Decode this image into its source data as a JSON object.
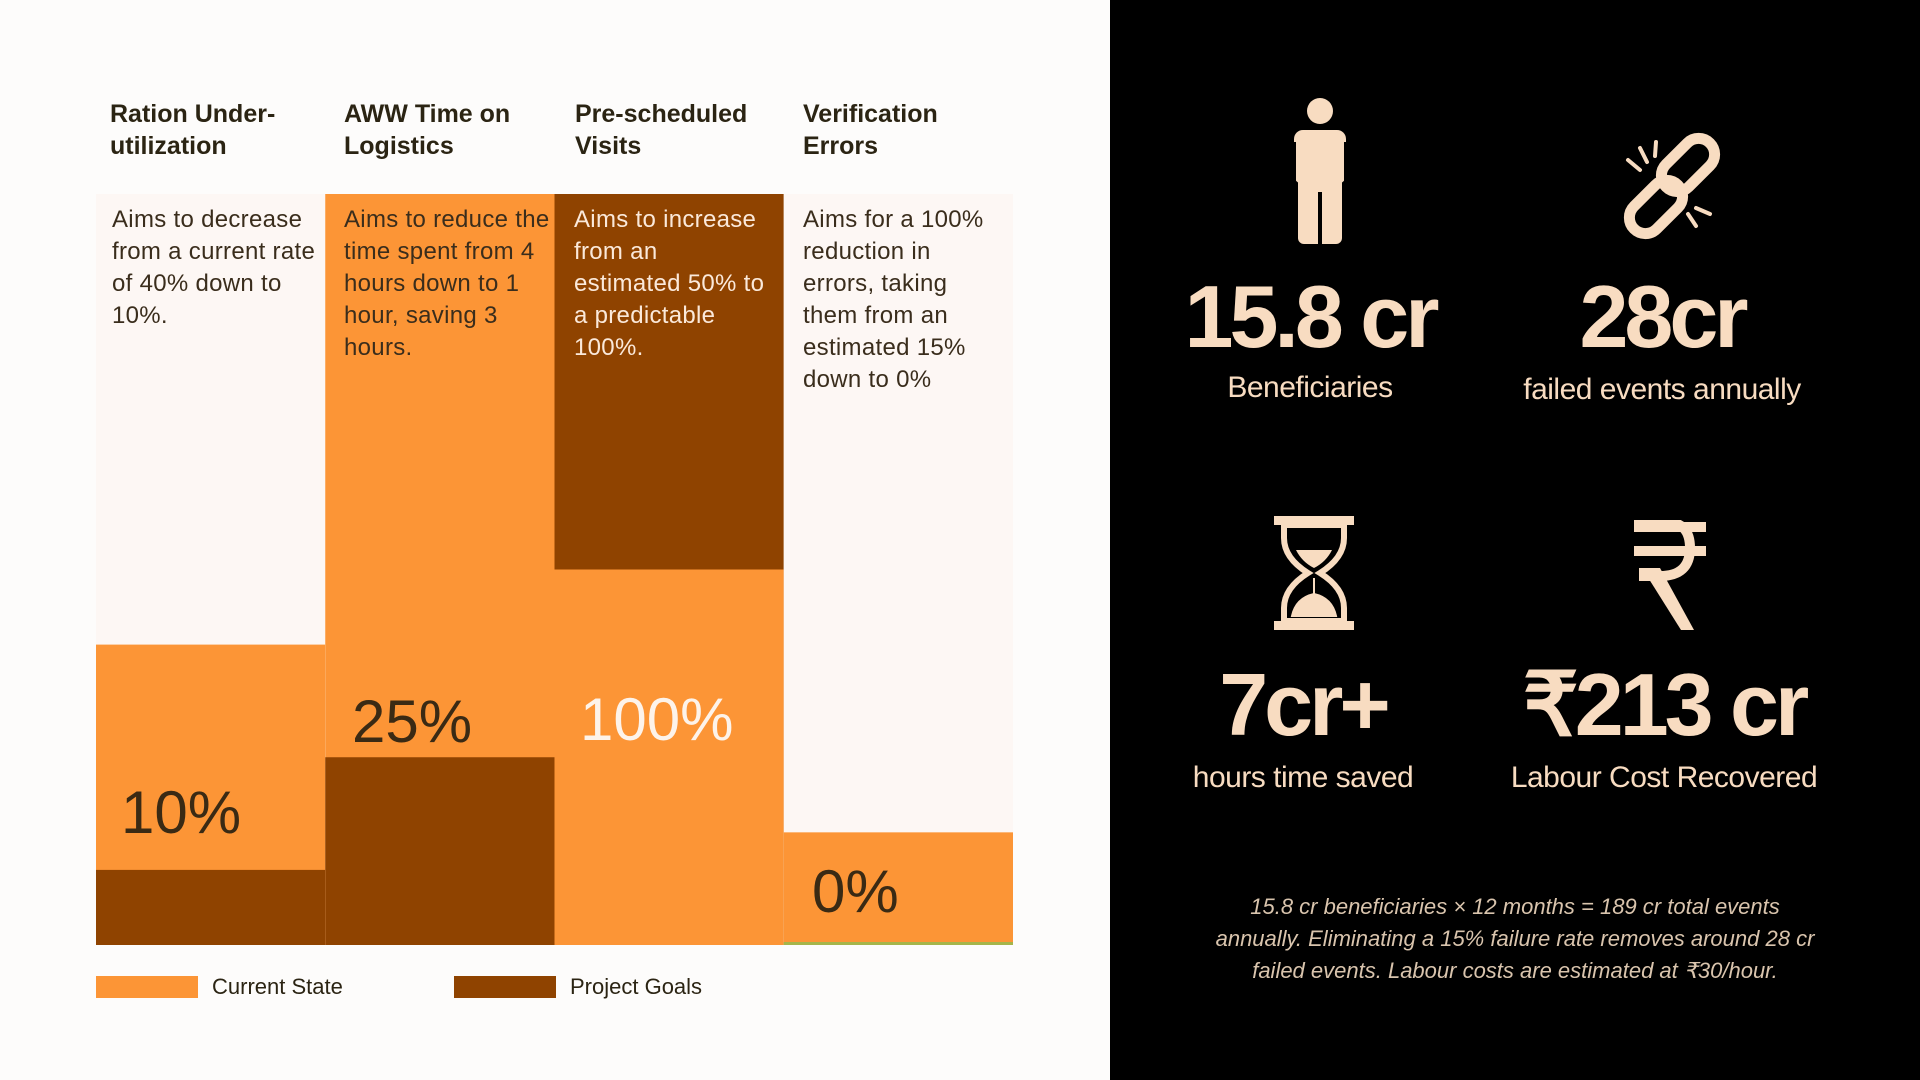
{
  "chart_data": {
    "type": "bar",
    "categories": [
      "Ration Under-utilization",
      "AWW Time on Logistics",
      "Pre-scheduled Visits",
      "Verification Errors"
    ],
    "series": [
      {
        "name": "Current State",
        "values": [
          40,
          100,
          50,
          15
        ],
        "color": "#fc9536"
      },
      {
        "name": "Project Goals",
        "values": [
          10,
          25,
          100,
          0
        ],
        "color": "#8f4300"
      }
    ],
    "value_labels": [
      "10%",
      "25%",
      "100%",
      "0%"
    ],
    "ylim": [
      0,
      100
    ],
    "grid": false,
    "legend_position": "bottom-left"
  },
  "columns": [
    {
      "header": "Ration Under-utilization",
      "header_lines": [
        "Ration Under-",
        "utilization"
      ],
      "description": "Aims to decrease from a current rate of 40% down to 10%."
    },
    {
      "header": "AWW Time on Logistics",
      "header_lines": [
        "AWW Time on",
        "Logistics"
      ],
      "description": "Aims to reduce the time spent from 4 hours down to 1 hour, saving 3 hours."
    },
    {
      "header": "Pre-scheduled Visits",
      "header_lines": [
        "Pre-scheduled",
        "Visits"
      ],
      "description": "Aims to increase from an estimated 50% to a predictable 100%."
    },
    {
      "header": "Verification Errors",
      "header_lines": [
        "Verification",
        "Errors"
      ],
      "description": "Aims for a 100% reduction in errors, taking them from an estimated 15% down to 0%"
    }
  ],
  "legend": [
    {
      "label": "Current State",
      "color": "#fc9536"
    },
    {
      "label": "Project Goals",
      "color": "#8f4300"
    }
  ],
  "stats": [
    {
      "value": "15.8 cr",
      "label": "Beneficiaries",
      "icon": "person-icon"
    },
    {
      "value": "28cr",
      "label": "failed events annually",
      "icon": "broken-link-icon"
    },
    {
      "value": "7cr+",
      "label": "hours time saved",
      "icon": "hourglass-icon"
    },
    {
      "value": "₹213 cr",
      "label": "Labour Cost Recovered",
      "icon": "rupee-icon"
    }
  ],
  "footnote": "15.8 cr beneficiaries × 12 months = 189 cr total events annually. Eliminating a 15% failure rate removes  around 28 cr failed events. Labour costs are estimated at ₹30/hour.",
  "colors": {
    "panel_background": "#000000",
    "page_background": "#fdfcfb",
    "column_background": "#fdf7f4",
    "stat_text": "#f8dcc1",
    "accent_green": "#a5b54a"
  }
}
